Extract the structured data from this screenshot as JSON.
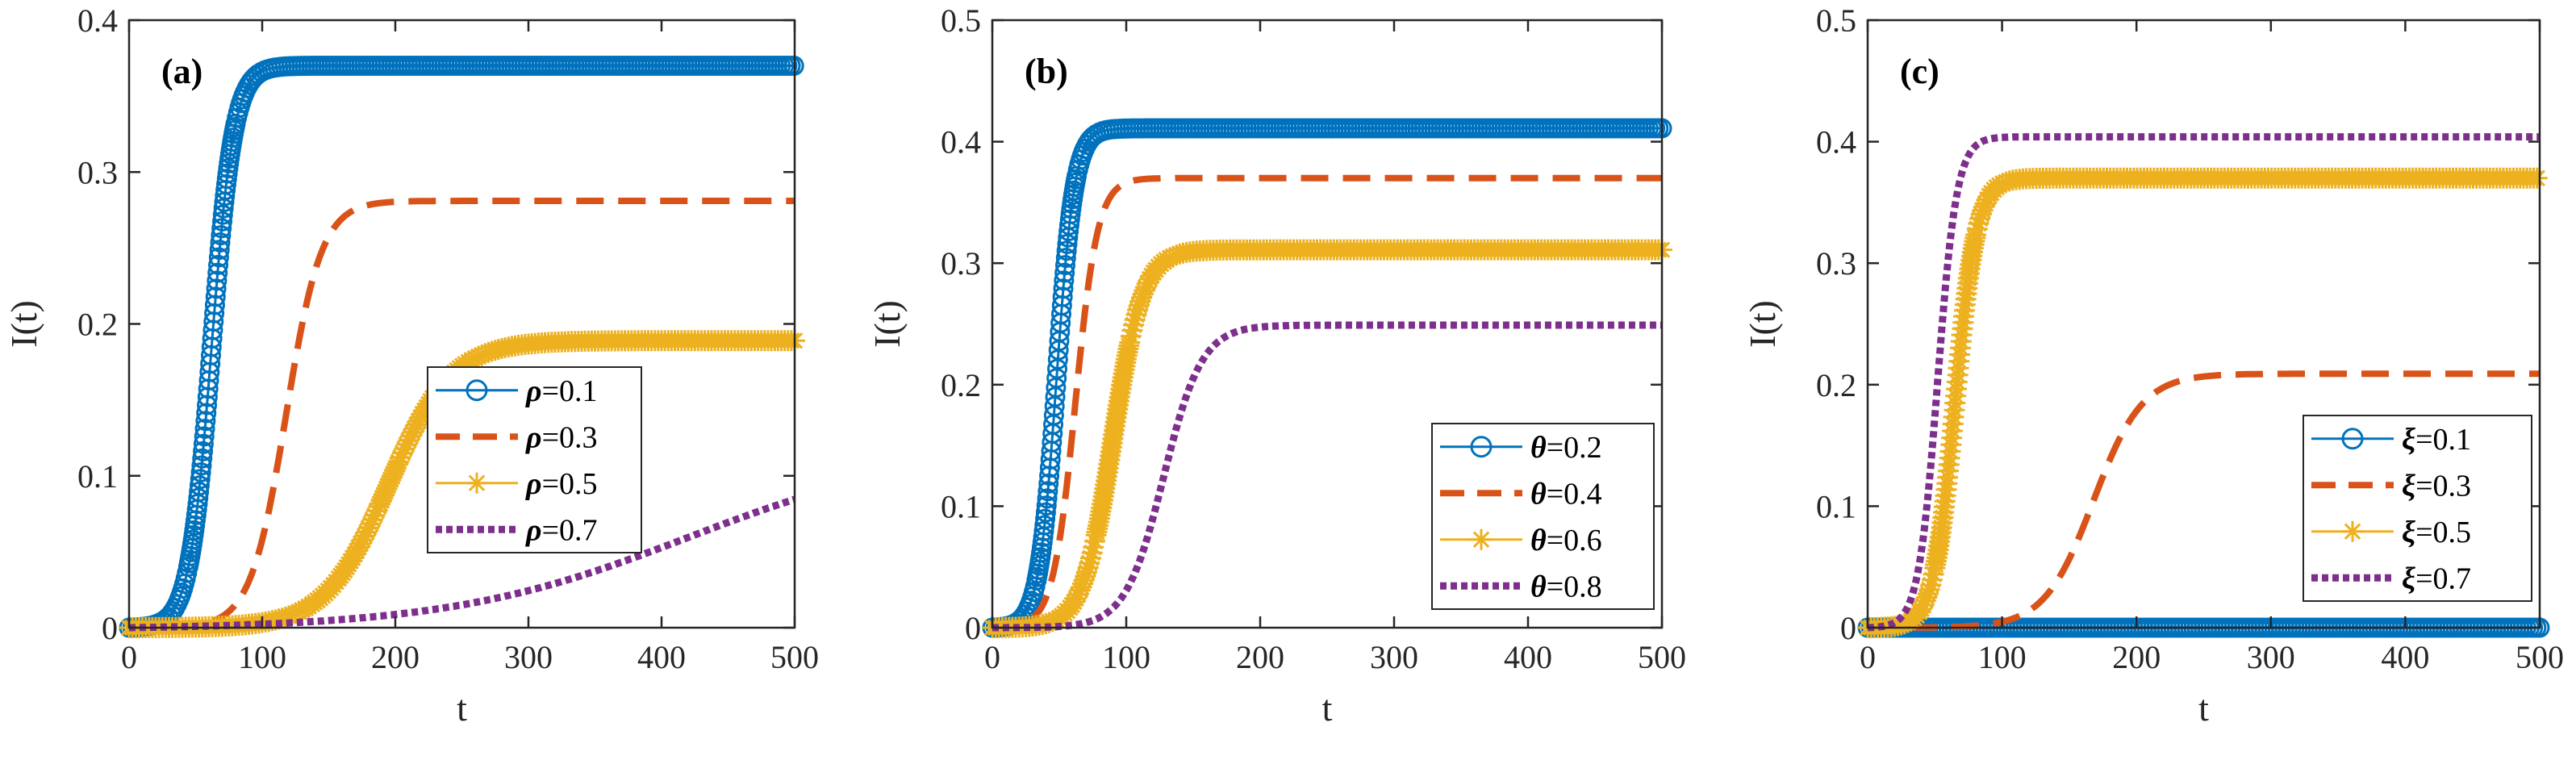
{
  "figure": {
    "panels": 3,
    "line_colors": [
      "#0072BD",
      "#D95319",
      "#EDB120",
      "#7E2F8E"
    ]
  },
  "chart_data": [
    {
      "type": "line",
      "panel_label": "(a)",
      "xlabel": "t",
      "ylabel": "I(t)",
      "xlim": [
        0,
        500
      ],
      "ylim": [
        0,
        0.4
      ],
      "xticks": [
        "0",
        "100",
        "200",
        "300",
        "400",
        "500"
      ],
      "yticks": [
        "0",
        "0.1",
        "0.2",
        "0.3",
        "0.4"
      ],
      "legend_position": "center-right",
      "series": [
        {
          "name": "ρ=0.1",
          "symbol": "ρ",
          "value": "=0.1",
          "style": "circle",
          "color": "#0072BD",
          "plateau": 0.37,
          "midpoint": 62,
          "rate": 0.12
        },
        {
          "name": "ρ=0.3",
          "symbol": "ρ",
          "value": "=0.3",
          "style": "dashed",
          "color": "#D95319",
          "plateau": 0.281,
          "midpoint": 118,
          "rate": 0.075
        },
        {
          "name": "ρ=0.5",
          "symbol": "ρ",
          "value": "=0.5",
          "style": "star",
          "color": "#EDB120",
          "plateau": 0.189,
          "midpoint": 195,
          "rate": 0.042
        },
        {
          "name": "ρ=0.7",
          "symbol": "ρ",
          "value": "=0.7",
          "style": "dotted",
          "color": "#7E2F8E",
          "plateau": 0.12,
          "midpoint": 420,
          "rate": 0.011
        }
      ]
    },
    {
      "type": "line",
      "panel_label": "(b)",
      "xlabel": "t",
      "ylabel": "I(t)",
      "xlim": [
        0,
        500
      ],
      "ylim": [
        0,
        0.5
      ],
      "xticks": [
        "0",
        "100",
        "200",
        "300",
        "400",
        "500"
      ],
      "yticks": [
        "0",
        "0.1",
        "0.2",
        "0.3",
        "0.4",
        "0.5"
      ],
      "legend_position": "bottom-right",
      "series": [
        {
          "name": "θ=0.2",
          "symbol": "θ",
          "value": "=0.2",
          "style": "circle",
          "color": "#0072BD",
          "plateau": 0.411,
          "midpoint": 48,
          "rate": 0.15
        },
        {
          "name": "θ=0.4",
          "symbol": "θ",
          "value": "=0.4",
          "style": "dashed",
          "color": "#D95319",
          "plateau": 0.37,
          "midpoint": 62,
          "rate": 0.12
        },
        {
          "name": "θ=0.6",
          "symbol": "θ",
          "value": "=0.6",
          "style": "star",
          "color": "#EDB120",
          "plateau": 0.311,
          "midpoint": 90,
          "rate": 0.09
        },
        {
          "name": "θ=0.8",
          "symbol": "θ",
          "value": "=0.8",
          "style": "dotted",
          "color": "#7E2F8E",
          "plateau": 0.249,
          "midpoint": 128,
          "rate": 0.07
        }
      ]
    },
    {
      "type": "line",
      "panel_label": "(c)",
      "xlabel": "t",
      "ylabel": "I(t)",
      "xlim": [
        0,
        500
      ],
      "ylim": [
        0,
        0.5
      ],
      "xticks": [
        "0",
        "100",
        "200",
        "300",
        "400",
        "500"
      ],
      "yticks": [
        "0",
        "0.1",
        "0.2",
        "0.3",
        "0.4",
        "0.5"
      ],
      "legend_position": "bottom-right",
      "series": [
        {
          "name": "ξ=0.1",
          "symbol": "ξ",
          "value": "=0.1",
          "style": "circle",
          "color": "#0072BD",
          "plateau": 0.0,
          "midpoint": 0,
          "rate": 0.1
        },
        {
          "name": "ξ=0.3",
          "symbol": "ξ",
          "value": "=0.3",
          "style": "dashed",
          "color": "#D95319",
          "plateau": 0.209,
          "midpoint": 168,
          "rate": 0.055
        },
        {
          "name": "ξ=0.5",
          "symbol": "ξ",
          "value": "=0.5",
          "style": "star",
          "color": "#EDB120",
          "plateau": 0.37,
          "midpoint": 65,
          "rate": 0.125
        },
        {
          "name": "ξ=0.7",
          "symbol": "ξ",
          "value": "=0.7",
          "style": "dotted",
          "color": "#7E2F8E",
          "plateau": 0.404,
          "midpoint": 52,
          "rate": 0.14
        }
      ]
    }
  ]
}
